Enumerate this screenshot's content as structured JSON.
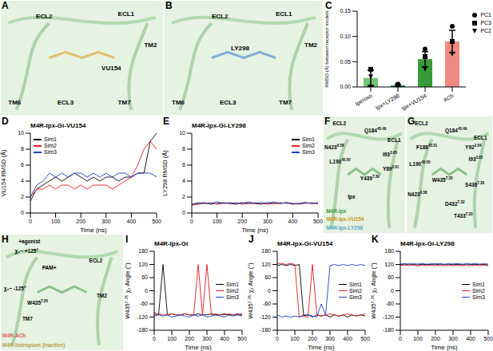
{
  "chart_data": [
    {
      "panel": "C",
      "type": "bar",
      "y_label": "RMSD (Å) between receptor models",
      "categories": [
        "Iperoxo",
        "Ipx+LY298",
        "Ipx+VU154",
        "ACh"
      ],
      "values": [
        0.018,
        0.003,
        0.055,
        0.09
      ],
      "errors": [
        0.015,
        0.002,
        0.015,
        0.022
      ],
      "colors": [
        "#74c476",
        "#2e7d4f",
        "#3a9a3a",
        "#f08a80"
      ],
      "ylim": [
        0,
        0.15
      ],
      "yticks": [
        {
          "value": 0,
          "label": "0.00"
        },
        {
          "value": 0.05,
          "label": "0.05"
        },
        {
          "value": 0.1,
          "label": "0.10"
        },
        {
          "value": 0.15,
          "label": "0.15"
        }
      ],
      "legend": "right",
      "points": [
        {
          "name": "PC1",
          "marker": "circle",
          "values": [
            0.0,
            0.0,
            0.075,
            0.12
          ]
        },
        {
          "name": "PC3",
          "marker": "square",
          "values": [
            0.035,
            0.003,
            0.06,
            0.09
          ]
        },
        {
          "name": "PC2",
          "marker": "triangle-down",
          "values": [
            0.02,
            0.005,
            0.035,
            0.065
          ]
        }
      ]
    },
    {
      "panel": "D",
      "type": "line",
      "title": "M4R-Ipx-Gi-VU154",
      "x_label": "Time (ns)",
      "y_label": "VU154 RMSD (Å)",
      "x": [
        0,
        25,
        50,
        75,
        100,
        125,
        150,
        175,
        200,
        225,
        250,
        275,
        300,
        325,
        350,
        375,
        400,
        425,
        450,
        475,
        500
      ],
      "xlim": [
        0,
        500
      ],
      "xticks": [
        0,
        100,
        200,
        300,
        400,
        500
      ],
      "ylim": [
        0,
        10
      ],
      "yticks": [
        0,
        2,
        4,
        6,
        8,
        10
      ],
      "legend": "upper left",
      "series": [
        {
          "name": "Sim1",
          "color": "#000000",
          "values": [
            1.5,
            3,
            3.5,
            4,
            4.5,
            4,
            4.5,
            5,
            4.5,
            4,
            4.5,
            4,
            4.5,
            4.5,
            4,
            4.5,
            4.5,
            5,
            5,
            9,
            10
          ]
        },
        {
          "name": "Sim2",
          "color": "#e41a1c",
          "values": [
            2,
            3,
            3,
            3.5,
            3,
            3.5,
            3.5,
            3,
            3.5,
            3,
            3.5,
            3.5,
            3.5,
            3,
            3.5,
            4,
            4.5,
            6,
            8,
            9,
            8
          ]
        },
        {
          "name": "Sim3",
          "color": "#1f3fd0",
          "values": [
            2,
            3.5,
            4,
            5,
            4.5,
            5,
            4.5,
            5,
            5,
            4.5,
            5,
            4.5,
            5,
            4.5,
            5,
            5,
            4.5,
            5,
            5,
            5,
            4.5
          ]
        }
      ]
    },
    {
      "panel": "E",
      "type": "line",
      "title": "M4R-Ipx-Gi-LY298",
      "x_label": "Time (ns)",
      "y_label": "LY298 RMSD (Å)",
      "x": [
        0,
        25,
        50,
        75,
        100,
        125,
        150,
        175,
        200,
        225,
        250,
        275,
        300,
        325,
        350,
        375,
        400,
        425,
        450,
        475,
        500
      ],
      "xlim": [
        0,
        500
      ],
      "xticks": [
        0,
        100,
        200,
        300,
        400,
        500
      ],
      "ylim": [
        0,
        10
      ],
      "yticks": [
        0,
        2,
        4,
        6,
        8,
        10
      ],
      "legend": "upper right",
      "series": [
        {
          "name": "Sim1",
          "color": "#000000",
          "values": [
            1.0,
            1.2,
            1.3,
            1.1,
            1.2,
            1.3,
            1.2,
            1.1,
            1.3,
            1.2,
            1.2,
            1.1,
            1.3,
            1.2,
            1.2,
            1.3,
            1.1,
            1.2,
            1.3,
            1.2,
            1.2
          ]
        },
        {
          "name": "Sim2",
          "color": "#e41a1c",
          "values": [
            1.0,
            1.1,
            1.2,
            1.3,
            1.1,
            1.2,
            1.2,
            1.3,
            1.1,
            1.2,
            1.3,
            1.2,
            1.1,
            1.2,
            1.3,
            1.2,
            1.2,
            1.1,
            1.2,
            1.3,
            1.2
          ]
        },
        {
          "name": "Sim3",
          "color": "#1f3fd0",
          "values": [
            1.1,
            1.3,
            1.2,
            1.2,
            1.4,
            1.2,
            1.3,
            1.2,
            1.2,
            1.4,
            1.2,
            1.3,
            1.2,
            1.4,
            1.2,
            1.3,
            1.2,
            1.2,
            1.3,
            1.2,
            1.3
          ]
        }
      ]
    },
    {
      "panel": "I",
      "type": "line",
      "title": "M4R-Ipx-Gi",
      "x_label": "Time (ns)",
      "y_label": "W435⁷·³⁵ χ₂ Angle (°)",
      "x": [
        0,
        25,
        50,
        75,
        100,
        125,
        150,
        175,
        200,
        225,
        250,
        275,
        300,
        325,
        350,
        375,
        400,
        425,
        450,
        475,
        500
      ],
      "xlim": [
        0,
        500
      ],
      "xticks": [
        0,
        100,
        200,
        300,
        400,
        500
      ],
      "ylim": [
        -180,
        180
      ],
      "yticks": [
        -180,
        -120,
        -60,
        0,
        60,
        120,
        180
      ],
      "legend": "right",
      "series": [
        {
          "name": "Sim1",
          "color": "#000000",
          "values": [
            -100,
            -110,
            120,
            -110,
            -105,
            -110,
            -110,
            -105,
            -110,
            -110,
            -105,
            -110,
            -110,
            -105,
            -110,
            -110,
            -105,
            -110,
            -110,
            -105,
            -110
          ]
        },
        {
          "name": "Sim2",
          "color": "#e41a1c",
          "values": [
            -110,
            -105,
            -110,
            -110,
            -105,
            -110,
            -110,
            -105,
            -110,
            -110,
            120,
            -110,
            120,
            -110,
            -105,
            -110,
            -110,
            -105,
            -110,
            -110,
            -105
          ]
        },
        {
          "name": "Sim3",
          "color": "#1f3fd0",
          "values": [
            -115,
            -110,
            -115,
            -110,
            -120,
            -115,
            -110,
            -115,
            -120,
            -110,
            -115,
            -110,
            -120,
            -115,
            -110,
            -115,
            -120,
            -110,
            -115,
            -110,
            -115
          ]
        }
      ]
    },
    {
      "panel": "J",
      "type": "line",
      "title": "M4R-Ipx-Gi-VU154",
      "x_label": "Time (ns)",
      "y_label": "W435⁷·³⁵ χ₂ Angle (°)",
      "x": [
        0,
        25,
        50,
        75,
        100,
        125,
        150,
        175,
        200,
        225,
        250,
        275,
        300,
        325,
        350,
        375,
        400,
        425,
        450,
        475,
        500
      ],
      "xlim": [
        0,
        500
      ],
      "xticks": [
        0,
        100,
        200,
        300,
        400,
        500
      ],
      "ylim": [
        -180,
        180
      ],
      "yticks": [
        -180,
        -120,
        -60,
        0,
        60,
        120,
        180
      ],
      "legend": "right",
      "series": [
        {
          "name": "Sim1",
          "color": "#000000",
          "values": [
            115,
            120,
            115,
            120,
            115,
            120,
            -115,
            -110,
            -120,
            -110,
            -115,
            -110,
            -120,
            -110,
            -115,
            -110,
            -120,
            -110,
            -115,
            -110,
            -115
          ]
        },
        {
          "name": "Sim2",
          "color": "#e41a1c",
          "values": [
            125,
            125,
            120,
            125,
            120,
            -120,
            -115,
            -120,
            120,
            -110,
            -115,
            -110,
            -105,
            -110,
            -115,
            -110,
            -105,
            -110,
            -115,
            -110,
            -105
          ]
        },
        {
          "name": "Sim3",
          "color": "#1f3fd0",
          "values": [
            -110,
            -120,
            -115,
            -120,
            -115,
            -120,
            -110,
            -110,
            -115,
            -120,
            -60,
            -110,
            115,
            120,
            115,
            120,
            115,
            120,
            115,
            120,
            115
          ]
        }
      ]
    },
    {
      "panel": "K",
      "type": "line",
      "title": "M4R-Ipx-Gi-LY298",
      "x_label": "Time (ns)",
      "y_label": "W435⁷·³⁵ χ₂ Angle (°)",
      "x": [
        0,
        25,
        50,
        75,
        100,
        125,
        150,
        175,
        200,
        225,
        250,
        275,
        300,
        325,
        350,
        375,
        400,
        425,
        450,
        475,
        500
      ],
      "xlim": [
        0,
        500
      ],
      "xticks": [
        0,
        100,
        200,
        300,
        400,
        500
      ],
      "ylim": [
        -180,
        180
      ],
      "yticks": [
        -180,
        -120,
        -60,
        0,
        60,
        120,
        180
      ],
      "legend": "right",
      "series": [
        {
          "name": "Sim1",
          "color": "#000000",
          "values": [
            120,
            118,
            122,
            120,
            118,
            121,
            119,
            120,
            122,
            118,
            120,
            121,
            119,
            120,
            118,
            122,
            120,
            119,
            121,
            120,
            118
          ]
        },
        {
          "name": "Sim2",
          "color": "#e41a1c",
          "values": [
            115,
            117,
            115,
            116,
            114,
            117,
            115,
            116,
            115,
            117,
            114,
            116,
            115,
            117,
            115,
            116,
            114,
            117,
            115,
            116,
            115
          ]
        },
        {
          "name": "Sim3",
          "color": "#1f3fd0",
          "values": [
            122,
            124,
            121,
            123,
            122,
            124,
            121,
            123,
            122,
            124,
            121,
            123,
            122,
            124,
            121,
            123,
            122,
            124,
            121,
            123,
            122
          ]
        }
      ]
    }
  ],
  "images": [
    {
      "panel": "A",
      "labels": [
        "ECL2",
        "ECL1",
        "TM2",
        "VU154",
        "TM6",
        "ECL3",
        "TM7"
      ]
    },
    {
      "panel": "B",
      "labels": [
        "ECL2",
        "ECL1",
        "TM2",
        "LY298",
        "TM6",
        "ECL3",
        "TM7"
      ]
    },
    {
      "panel": "F",
      "labels": [
        "ECL2",
        {
          "text": "Q184",
          "sup": "45.49"
        },
        "ECL1",
        {
          "text": "N423",
          "sup": "6.58"
        },
        {
          "text": "L190",
          "sup": "45.55"
        },
        {
          "text": "I93",
          "sup": "3.65"
        },
        {
          "text": "Y89",
          "sup": "2.61"
        },
        {
          "text": "Y439",
          "sup": "7.39"
        },
        "Ipx",
        {
          "text": "M4R-Ipx",
          "color": "#3a9a3a"
        },
        {
          "text": "M4R-Ipx-VU154",
          "color": "#c8961e"
        },
        {
          "text": "M4R-Ipx-LY298",
          "color": "#5fa8c8"
        }
      ]
    },
    {
      "panel": "G",
      "labels": [
        "ECL2",
        {
          "text": "Q184",
          "sup": "45.49"
        },
        "ECL1",
        {
          "text": "Y92",
          "sup": "2.64"
        },
        {
          "text": "F186",
          "sup": "45.51"
        },
        {
          "text": "I93",
          "sup": "3.65"
        },
        {
          "text": "L190",
          "sup": "45.55"
        },
        {
          "text": "W435",
          "sup": "7.35"
        },
        {
          "text": "S436",
          "sup": "7.36"
        },
        {
          "text": "N423",
          "sup": "6.58"
        },
        {
          "text": "D432",
          "sup": "7.32"
        },
        {
          "text": "T433",
          "sup": "7.33"
        }
      ]
    },
    {
      "panel": "H",
      "labels": [
        "+agonist",
        "χ₂~ +125°",
        "PAM+",
        "ECL2",
        "χ₂~ -125°",
        {
          "text": "W435",
          "sup": "7.35"
        },
        "TM7",
        "TM2",
        {
          "text": "M4R-ACh",
          "color": "#e0605a"
        },
        {
          "text": "M4R-tiotropium (inactive)",
          "color": "#b8a050"
        }
      ]
    }
  ]
}
